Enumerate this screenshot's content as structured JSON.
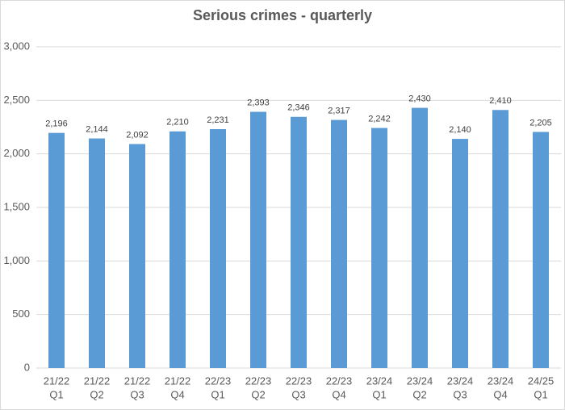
{
  "chart_data": {
    "type": "bar",
    "title": "Serious crimes - quarterly",
    "categories": [
      [
        "21/22",
        "Q1"
      ],
      [
        "21/22",
        "Q2"
      ],
      [
        "21/22",
        "Q3"
      ],
      [
        "21/22",
        "Q4"
      ],
      [
        "22/23",
        "Q1"
      ],
      [
        "22/23",
        "Q2"
      ],
      [
        "22/23",
        "Q3"
      ],
      [
        "22/23",
        "Q4"
      ],
      [
        "23/24",
        "Q1"
      ],
      [
        "23/24",
        "Q2"
      ],
      [
        "23/24",
        "Q3"
      ],
      [
        "23/24",
        "Q4"
      ],
      [
        "24/25",
        "Q1"
      ]
    ],
    "values": [
      2196,
      2144,
      2092,
      2210,
      2231,
      2393,
      2346,
      2317,
      2242,
      2430,
      2140,
      2410,
      2205
    ],
    "value_labels": [
      "2,196",
      "2,144",
      "2,092",
      "2,210",
      "2,231",
      "2,393",
      "2,346",
      "2,317",
      "2,242",
      "2,430",
      "2,140",
      "2,410",
      "2,205"
    ],
    "color": "#5b9bd5",
    "ylim": [
      0,
      3000
    ],
    "yticks": [
      0,
      500,
      {
        "value": 1000,
        "label": "1,000"
      },
      {
        "value": 1500,
        "label": "1,500"
      },
      {
        "value": 2000,
        "label": "2,000"
      },
      {
        "value": 2500,
        "label": "2,500"
      },
      {
        "value": 3000,
        "label": "3,000"
      }
    ],
    "grid": true
  }
}
